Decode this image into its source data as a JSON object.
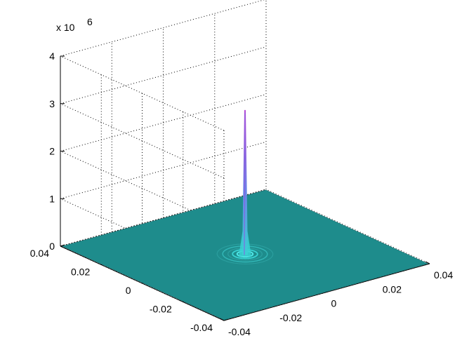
{
  "chart_data": {
    "type": "surface",
    "title": "",
    "xlabel": "",
    "ylabel": "",
    "zlabel": "",
    "z_exponent_label": "x 10",
    "z_exponent": "6",
    "xlim": [
      -0.04,
      0.04
    ],
    "ylim": [
      -0.04,
      0.04
    ],
    "zlim": [
      0,
      4
    ],
    "x_ticks": [
      "-0.04",
      "-0.02",
      "0",
      "0.02",
      "0.04"
    ],
    "y_ticks": [
      "-0.04",
      "-0.02",
      "0",
      "0.02",
      "0.04"
    ],
    "z_ticks": [
      "0",
      "1",
      "2",
      "3",
      "4"
    ],
    "grid": true,
    "colormap": "cool",
    "surface": {
      "description": "flat plane near zero with a sharp central peak and concentric ripples",
      "peak_value": 3.05,
      "peak_x": 0,
      "peak_y": 0,
      "base_value": 0
    },
    "colors": {
      "base": "#1e8c8c",
      "ring": "#39d2d2",
      "peak_top": "#b84bd6",
      "peak_mid": "#6a82e8"
    }
  }
}
